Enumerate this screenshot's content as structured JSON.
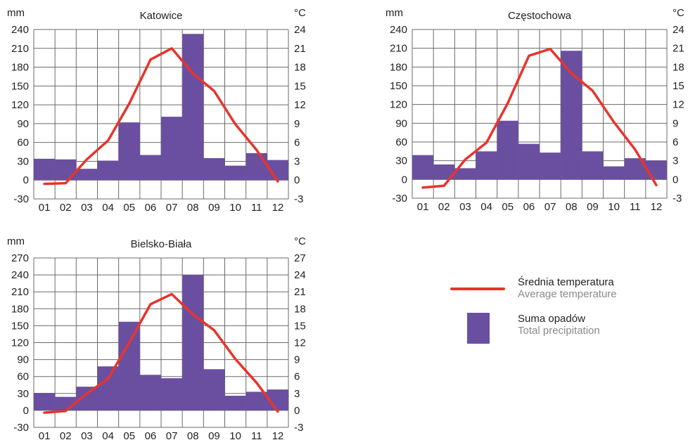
{
  "colors": {
    "bar": "#6a4fa0",
    "line": "#e8342b",
    "grid": "#6a6a6a"
  },
  "legend": {
    "temperature_pl": "Średnia temperatura",
    "temperature_en": "Average temperature",
    "precipitation_pl": "Suma opadów",
    "precipitation_en": "Total precipitation"
  },
  "chart_data": [
    {
      "type": "bar+line",
      "title": "Katowice",
      "categories": [
        "01",
        "02",
        "03",
        "04",
        "05",
        "06",
        "07",
        "08",
        "09",
        "10",
        "11",
        "12"
      ],
      "left_unit": "mm",
      "right_unit": "°C",
      "ylim": [
        -30,
        240
      ],
      "y2lim": [
        -3,
        24
      ],
      "left_ticks": [
        -30,
        0,
        30,
        60,
        90,
        120,
        150,
        180,
        210,
        240
      ],
      "right_ticks": [
        -3,
        0,
        3,
        6,
        9,
        12,
        15,
        18,
        21,
        24
      ],
      "precipitation": [
        34,
        33,
        18,
        31,
        92,
        40,
        101,
        233,
        35,
        23,
        43,
        32
      ],
      "temperature": [
        -0.6,
        -0.5,
        3.3,
        6.3,
        12.2,
        19.2,
        21.0,
        17.0,
        14.2,
        8.9,
        4.8,
        -0.2
      ]
    },
    {
      "type": "bar+line",
      "title": "Częstochowa",
      "categories": [
        "01",
        "02",
        "03",
        "04",
        "05",
        "06",
        "07",
        "08",
        "09",
        "10",
        "11",
        "12"
      ],
      "left_unit": "mm",
      "right_unit": "°C",
      "ylim": [
        -30,
        240
      ],
      "y2lim": [
        -3,
        24
      ],
      "left_ticks": [
        -30,
        0,
        30,
        60,
        90,
        120,
        150,
        180,
        210,
        240
      ],
      "right_ticks": [
        -3,
        0,
        3,
        6,
        9,
        12,
        15,
        18,
        21,
        24
      ],
      "precipitation": [
        39,
        24,
        18,
        45,
        94,
        57,
        43,
        206,
        45,
        21,
        34,
        30
      ],
      "temperature": [
        -1.3,
        -1.0,
        3.2,
        5.9,
        12.2,
        19.8,
        20.9,
        17.0,
        14.2,
        9.2,
        4.8,
        -0.9
      ]
    },
    {
      "type": "bar+line",
      "title": "Bielsko-Biała",
      "categories": [
        "01",
        "02",
        "03",
        "04",
        "05",
        "06",
        "07",
        "08",
        "09",
        "10",
        "11",
        "12"
      ],
      "left_unit": "mm",
      "right_unit": "°C",
      "ylim": [
        -30,
        270
      ],
      "y2lim": [
        -3,
        27
      ],
      "left_ticks": [
        -30,
        0,
        30,
        60,
        90,
        120,
        150,
        180,
        210,
        240,
        270
      ],
      "right_ticks": [
        -3,
        0,
        3,
        6,
        9,
        12,
        15,
        18,
        21,
        24,
        27
      ],
      "precipitation": [
        31,
        24,
        42,
        78,
        157,
        63,
        57,
        240,
        73,
        26,
        33,
        37
      ],
      "temperature": [
        -0.4,
        -0.1,
        3.0,
        5.6,
        12.0,
        18.8,
        20.6,
        17.0,
        14.2,
        9.1,
        4.9,
        -0.2
      ]
    }
  ]
}
